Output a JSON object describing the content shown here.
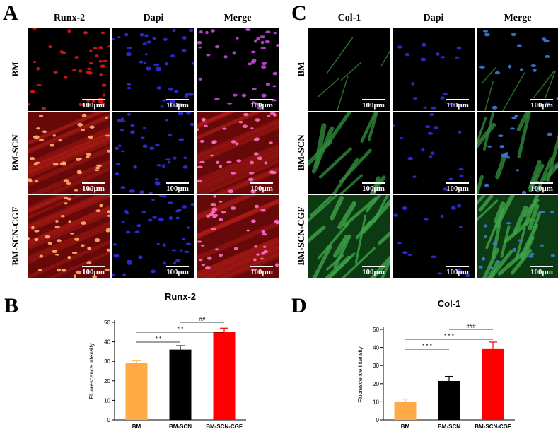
{
  "panels": {
    "a": "A",
    "b": "B",
    "c": "C",
    "d": "D"
  },
  "micro_left": {
    "columns": [
      "Runx-2",
      "Dapi",
      "Merge"
    ],
    "rows": [
      "BM",
      "BM-SCN",
      "BM-SCN-CGF"
    ]
  },
  "micro_right": {
    "columns": [
      "Col-1",
      "Dapi",
      "Merge"
    ],
    "rows": [
      "BM",
      "BM-SCN",
      "BM-SCN-CGF"
    ]
  },
  "scale_label": "100μm",
  "colors": {
    "bm": "#FFAA44",
    "bm_scn": "#000000",
    "bm_scn_cgf": "#FF0000"
  },
  "chart_data": [
    {
      "type": "bar",
      "title": "Runx-2",
      "ylabel": "Fluorescence intensity",
      "xlabel": "",
      "categories": [
        "BM",
        "BM-SCN",
        "BM-SCN-CGF"
      ],
      "values": [
        29,
        36,
        45
      ],
      "errors": [
        1.5,
        2,
        2
      ],
      "ylim": [
        0,
        50
      ],
      "yticks": [
        0,
        10,
        20,
        30,
        40,
        50
      ],
      "significance": [
        {
          "from": 0,
          "to": 1,
          "label": "* *"
        },
        {
          "from": 0,
          "to": 2,
          "label": "* *"
        },
        {
          "from": 1,
          "to": 2,
          "label": "##"
        }
      ]
    },
    {
      "type": "bar",
      "title": "Col-1",
      "ylabel": "Fluorescence intensity",
      "xlabel": "",
      "categories": [
        "BM",
        "BM-SCN",
        "BM-SCN-CGF"
      ],
      "values": [
        10,
        21.5,
        39.5
      ],
      "errors": [
        1.5,
        2.5,
        3.5
      ],
      "ylim": [
        0,
        50
      ],
      "yticks": [
        0,
        10,
        20,
        30,
        40,
        50
      ],
      "significance": [
        {
          "from": 0,
          "to": 1,
          "label": "* * *"
        },
        {
          "from": 0,
          "to": 2,
          "label": "* * *"
        },
        {
          "from": 1,
          "to": 2,
          "label": "###"
        }
      ]
    }
  ]
}
